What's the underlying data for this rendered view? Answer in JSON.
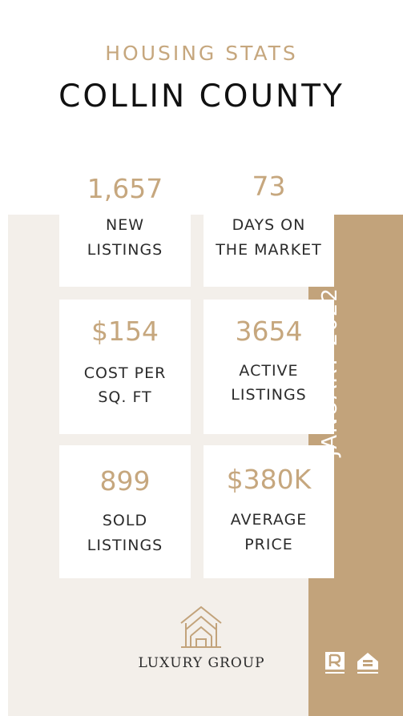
{
  "header": {
    "eyebrow": "HOUSING STATS",
    "title": "COLLIN COUNTY"
  },
  "date_label": "JANUARY 2022",
  "stats": [
    {
      "value": "1,657",
      "label_line1": "NEW",
      "label_line2": "LISTINGS"
    },
    {
      "value": "73",
      "label_line1": "DAYS ON",
      "label_line2": "THE MARKET"
    },
    {
      "value": "$154",
      "label_line1": "COST PER",
      "label_line2": "SQ. FT"
    },
    {
      "value": "3654",
      "label_line1": "ACTIVE",
      "label_line2": "LISTINGS"
    },
    {
      "value": "899",
      "label_line1": "SOLD",
      "label_line2": "LISTINGS"
    },
    {
      "value": "$380K",
      "label_line1": "AVERAGE",
      "label_line2": "PRICE"
    }
  ],
  "brand": {
    "name": "LUXURY GROUP",
    "logo_icon": "house-outline-icon",
    "badges": [
      "realtor-icon",
      "equal-housing-opportunity-icon"
    ]
  },
  "colors": {
    "gold": "#c2a37b",
    "gold_text": "#c6a77e",
    "beige": "#f3efea",
    "text_dark": "#111111"
  }
}
